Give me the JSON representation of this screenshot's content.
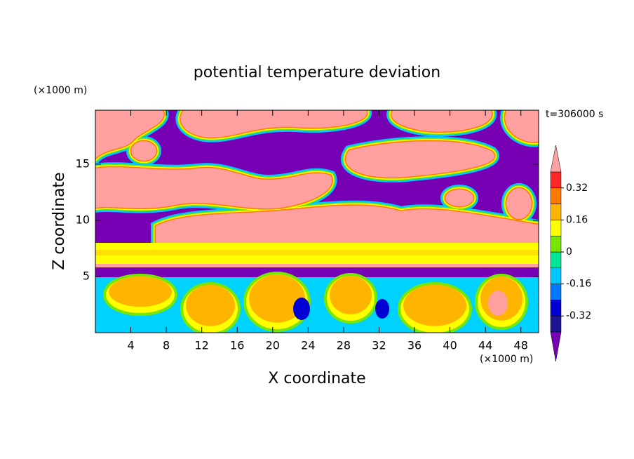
{
  "chart_data": {
    "type": "contour",
    "title": "potential temperature deviation",
    "x_label": "X coordinate",
    "y_label": "Z coordinate",
    "x_unit": "(×1000 m)",
    "y_unit": "(×1000 m)",
    "time_label": "t=306000 s",
    "xlim": [
      0,
      50
    ],
    "xticks": [
      4,
      8,
      12,
      16,
      20,
      24,
      28,
      32,
      36,
      40,
      44,
      48
    ],
    "ylim": [
      0,
      19.8
    ],
    "yticks": [
      5,
      10,
      15
    ],
    "colorbar": {
      "levels": [
        -0.4,
        -0.32,
        -0.24,
        -0.16,
        -0.08,
        0,
        0.08,
        0.16,
        0.24,
        0.32,
        0.4
      ],
      "colors": [
        "#1e1496",
        "#0000d2",
        "#0078ff",
        "#00c8ff",
        "#00e696",
        "#78e600",
        "#ffff00",
        "#ffb400",
        "#ff7800",
        "#ff2828"
      ],
      "under_color": "#7800b4",
      "over_color": "#ffa0a0",
      "ticks": [
        -0.32,
        -0.16,
        0,
        0.16,
        0.32
      ]
    }
  }
}
